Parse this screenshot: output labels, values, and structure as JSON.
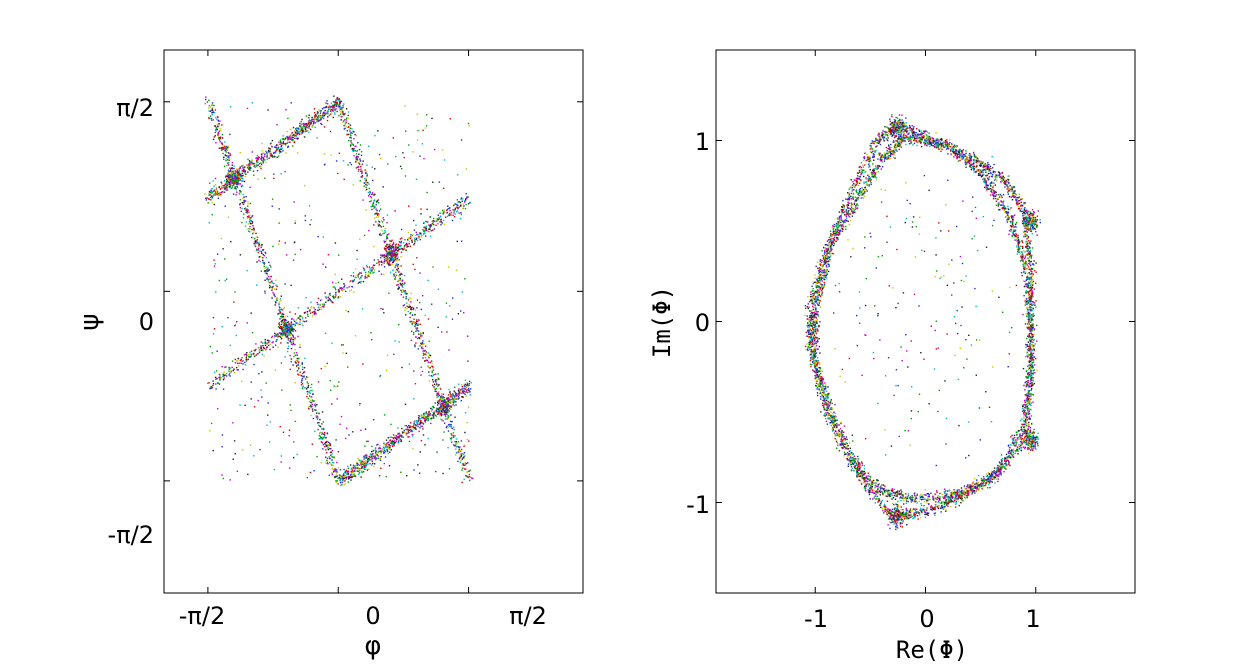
{
  "colors": {
    "points": [
      "#1f2bd9",
      "#00a000",
      "#e00000",
      "#00b8c8",
      "#c400c4",
      "#c8c800",
      "#202020"
    ],
    "axes": "#000000",
    "background": "#ffffff"
  },
  "chart_data": [
    {
      "type": "scatter",
      "title": "",
      "xlabel": "φ",
      "ylabel": "ψ",
      "xlim": [
        -2.1,
        2.95
      ],
      "ylim": [
        -2.5,
        2.0
      ],
      "x_ticks": [
        {
          "value": -1.5708,
          "label": "-π/2"
        },
        {
          "value": 0,
          "label": "0"
        },
        {
          "value": 1.5708,
          "label": "π/2"
        }
      ],
      "y_ticks": [
        {
          "value": -1.5708,
          "label": "-π/2"
        },
        {
          "value": 0,
          "label": "0"
        },
        {
          "value": 1.5708,
          "label": "π/2"
        }
      ],
      "grid": false,
      "legend": "none",
      "series": [
        {
          "kind": "line-band",
          "segments": [
            [
              [
                -1.5708,
                0.78
              ],
              [
                0.0,
                1.5708
              ]
            ],
            [
              [
                -1.5708,
                -0.78
              ],
              [
                1.5708,
                0.78
              ]
            ],
            [
              [
                0.0,
                -1.5708
              ],
              [
                1.5708,
                -0.78
              ]
            ],
            [
              [
                -1.5708,
                1.5708
              ],
              [
                0.0,
                -1.5708
              ]
            ],
            [
              [
                0.0,
                1.5708
              ],
              [
                1.5708,
                -1.5708
              ]
            ]
          ]
        },
        {
          "kind": "clusters",
          "points": [
            [
              -1.27,
              0.95
            ],
            [
              -0.63,
              -0.31
            ],
            [
              0.63,
              0.31
            ],
            [
              1.27,
              -0.95
            ]
          ]
        }
      ]
    },
    {
      "type": "scatter",
      "title": "",
      "xlabel": "Re(Φ)",
      "ylabel": "Im(Φ)",
      "xlim": [
        -1.9,
        1.9
      ],
      "ylim": [
        -1.5,
        1.5
      ],
      "x_ticks": [
        {
          "value": -1,
          "label": "-1"
        },
        {
          "value": 0,
          "label": "0"
        },
        {
          "value": 1,
          "label": "1"
        }
      ],
      "y_ticks": [
        {
          "value": -1,
          "label": "-1"
        },
        {
          "value": 0,
          "label": "0"
        },
        {
          "value": 1,
          "label": "1"
        }
      ],
      "grid": false,
      "legend": "none",
      "series": [
        {
          "kind": "closed-curve",
          "points": [
            [
              -0.25,
              1.09
            ],
            [
              0.05,
              1.0
            ],
            [
              0.45,
              0.9
            ],
            [
              0.72,
              0.78
            ],
            [
              0.9,
              0.6
            ],
            [
              0.95,
              0.3
            ],
            [
              0.95,
              0.0
            ],
            [
              0.95,
              -0.3
            ],
            [
              0.9,
              -0.65
            ],
            [
              0.6,
              -0.85
            ],
            [
              0.3,
              -0.97
            ],
            [
              0.0,
              -1.05
            ],
            [
              -0.3,
              -1.08
            ],
            [
              -0.55,
              -0.9
            ],
            [
              -0.85,
              -0.5
            ],
            [
              -1.05,
              -0.15
            ],
            [
              -1.05,
              0.1
            ],
            [
              -0.9,
              0.4
            ],
            [
              -0.65,
              0.75
            ],
            [
              -0.45,
              1.0
            ],
            [
              -0.25,
              1.09
            ]
          ]
        },
        {
          "kind": "closed-curve",
          "points": [
            [
              -0.2,
              1.02
            ],
            [
              -0.4,
              0.9
            ],
            [
              -0.6,
              0.7
            ],
            [
              -0.85,
              0.45
            ],
            [
              -1.0,
              0.1
            ],
            [
              -1.02,
              -0.2
            ],
            [
              -0.9,
              -0.5
            ],
            [
              -0.7,
              -0.75
            ],
            [
              -0.45,
              -0.92
            ],
            [
              -0.1,
              -0.98
            ],
            [
              0.3,
              -0.95
            ],
            [
              0.65,
              -0.85
            ],
            [
              0.9,
              -0.55
            ],
            [
              0.95,
              -0.1
            ],
            [
              0.9,
              0.3
            ],
            [
              0.75,
              0.6
            ],
            [
              0.5,
              0.82
            ],
            [
              0.2,
              0.98
            ],
            [
              -0.2,
              1.02
            ]
          ]
        },
        {
          "kind": "clusters",
          "points": [
            [
              -0.27,
              1.07
            ],
            [
              -0.27,
              -1.07
            ],
            [
              0.95,
              0.55
            ],
            [
              0.95,
              -0.65
            ]
          ]
        }
      ]
    }
  ]
}
